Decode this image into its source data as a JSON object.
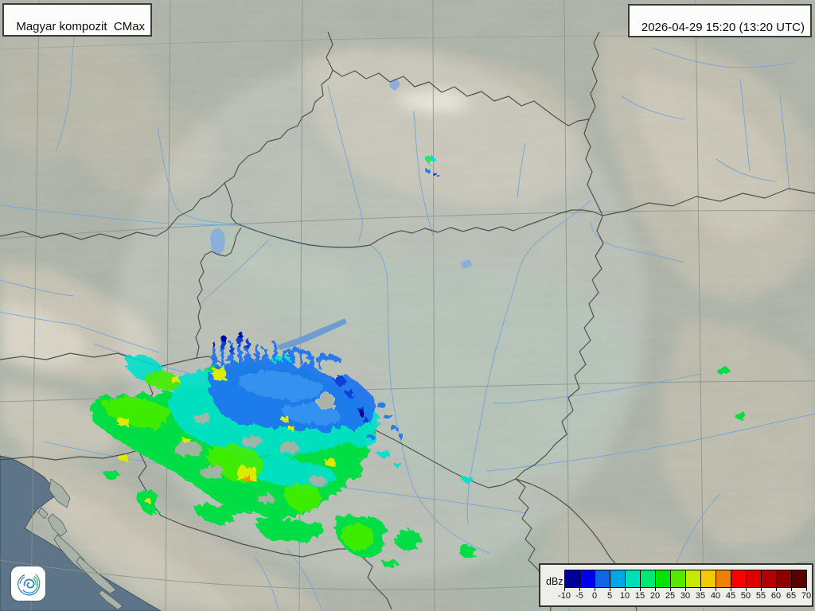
{
  "header": {
    "title": "Magyar kompozit  CMax",
    "timestamp": "2026-04-29 15:20 (13:20 UTC)"
  },
  "legend": {
    "unit": "dBz",
    "ticks": [
      "-10",
      "-5",
      "0",
      "5",
      "10",
      "15",
      "20",
      "25",
      "30",
      "35",
      "40",
      "45",
      "50",
      "55",
      "60",
      "65",
      "70"
    ],
    "colors": [
      "#000096",
      "#0000e8",
      "#1164e4",
      "#00a8e8",
      "#00ddb9",
      "#00e870",
      "#00e400",
      "#55e800",
      "#c8e800",
      "#f2ca00",
      "#f28000",
      "#fa0000",
      "#dc0000",
      "#b40000",
      "#8c0000",
      "#5a0000"
    ]
  },
  "logo": {
    "icon": "cyclone-spiral-icon"
  },
  "map": {
    "colors": {
      "sea": "#5e7489",
      "land_base": "#a9b2a7",
      "plain": "#9fbcae",
      "hills": "#c9c3b2",
      "ridge_light": "#ddd8c9",
      "river": "#7ba6d6",
      "border": "#45453f",
      "graticule": "#87928c",
      "echo_green": "#00dd44",
      "echo_bright_green": "#44ee00",
      "echo_cyan": "#00e0cc",
      "echo_blue": "#1d76ee",
      "echo_dark_blue": "#0b3fd6",
      "echo_navy": "#000094",
      "echo_yellow": "#ddeb00",
      "echo_orange": "#ff9000"
    }
  }
}
